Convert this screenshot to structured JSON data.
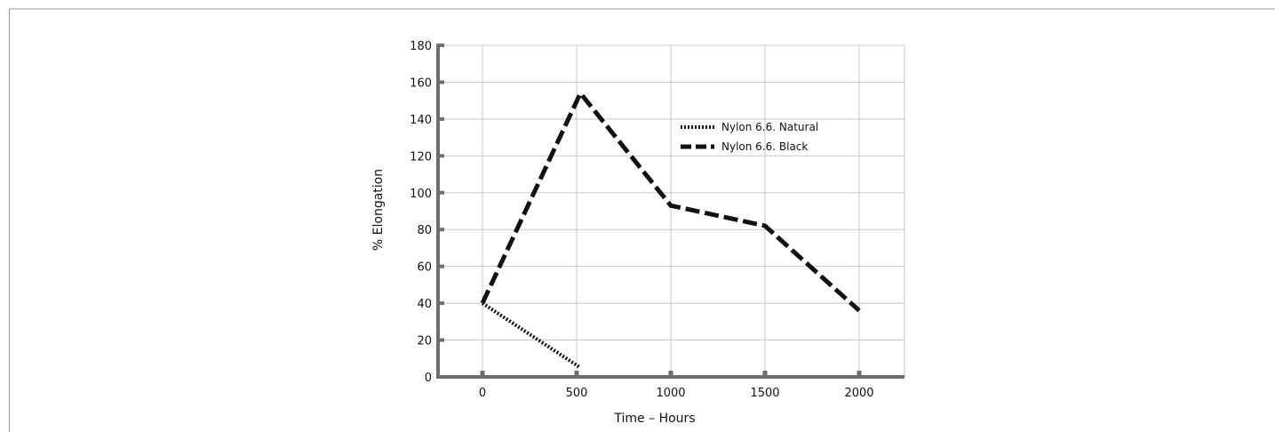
{
  "chart_data": {
    "type": "line",
    "xlabel": "Time – Hours",
    "ylabel": "% Elongation",
    "xlim": [
      -100,
      2250
    ],
    "ylim": [
      0,
      180
    ],
    "x_ticks": [
      0,
      500,
      1000,
      1500,
      2000
    ],
    "y_ticks": [
      0,
      20,
      40,
      60,
      80,
      100,
      120,
      140,
      160,
      180
    ],
    "grid": true,
    "legend_position": "top-right",
    "series": [
      {
        "name": "Nylon 6.6. Natural",
        "style": "dotted",
        "color": "#111111",
        "x": [
          0,
          520
        ],
        "y": [
          40,
          5
        ]
      },
      {
        "name": "Nylon 6.6. Black",
        "style": "dashed",
        "color": "#111111",
        "x": [
          0,
          520,
          1000,
          1500,
          2000
        ],
        "y": [
          40,
          154,
          93,
          82,
          36
        ]
      }
    ]
  }
}
